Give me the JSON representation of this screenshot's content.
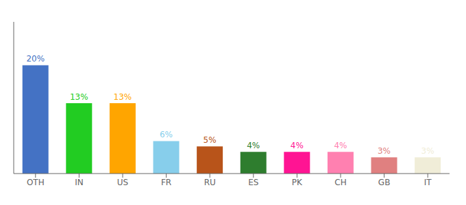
{
  "chart_data": {
    "type": "bar",
    "categories": [
      "OTH",
      "IN",
      "US",
      "FR",
      "RU",
      "ES",
      "PK",
      "CH",
      "GB",
      "IT"
    ],
    "values": [
      20,
      13,
      13,
      6,
      5,
      4,
      4,
      4,
      3,
      3
    ],
    "value_labels": [
      "20%",
      "13%",
      "13%",
      "6%",
      "5%",
      "4%",
      "4%",
      "4%",
      "3%",
      "3%"
    ],
    "colors": [
      "#4472C4",
      "#22CC22",
      "#FFA500",
      "#87CEEB",
      "#B8541A",
      "#2E7D2E",
      "#FF1493",
      "#FF80B0",
      "#E08080",
      "#F0EDD8"
    ],
    "ylim": [
      0,
      28
    ],
    "data_labels": true,
    "tick_labels": "x",
    "grid": false
  }
}
